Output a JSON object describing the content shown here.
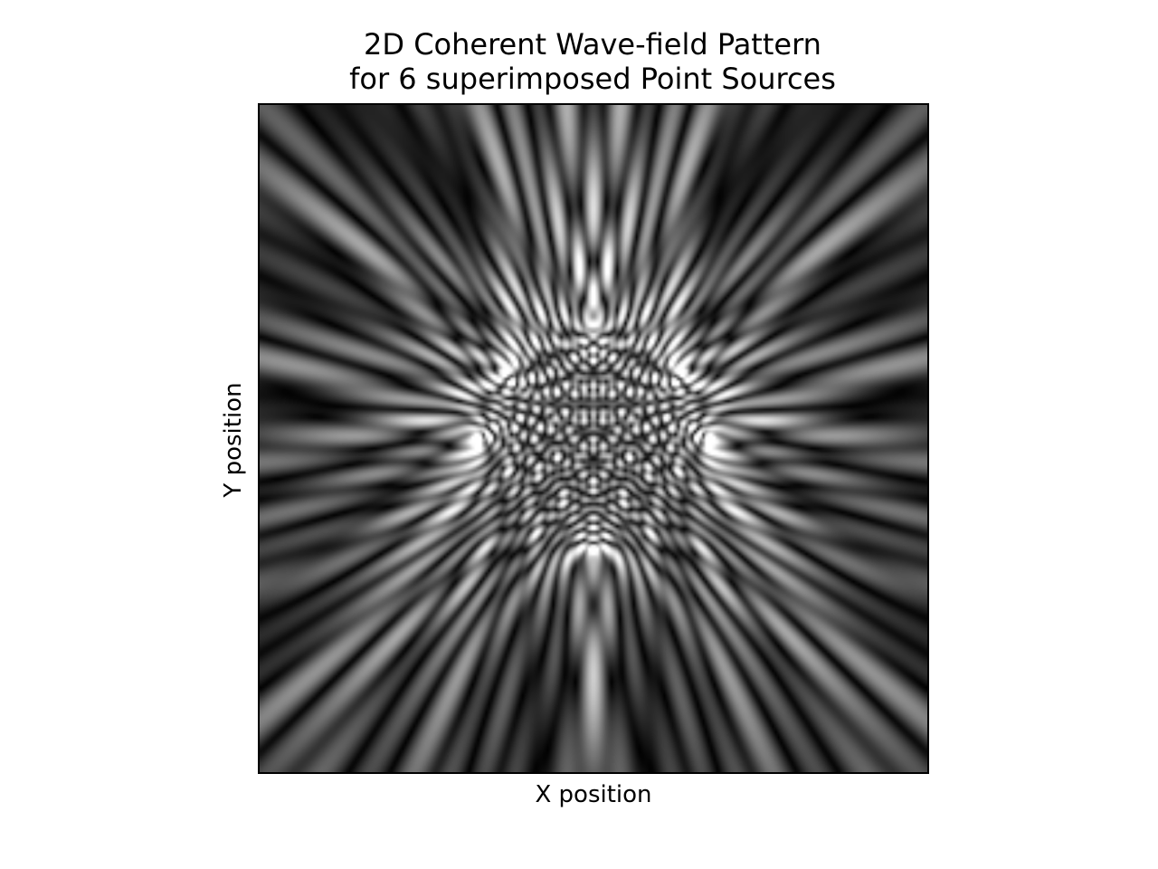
{
  "chart_data": {
    "type": "heatmap",
    "title_line1": "2D Coherent Wave-field Pattern",
    "title_line2": "for 6 superimposed Point Sources",
    "xlabel": "X position",
    "ylabel": "Y position",
    "colormap": "gray",
    "xticks": [],
    "yticks": [],
    "grid": false,
    "legend": "none",
    "source_count": 6,
    "sources": [
      {
        "x": 0.0,
        "y": -0.34
      },
      {
        "x": -0.27,
        "y": -0.2
      },
      {
        "x": 0.27,
        "y": -0.2
      },
      {
        "x": -0.35,
        "y": 0.0
      },
      {
        "x": 0.35,
        "y": 0.0
      },
      {
        "x": 0.0,
        "y": 0.34
      }
    ],
    "x_range": [
      -1,
      1
    ],
    "y_range": [
      -1,
      1
    ]
  }
}
